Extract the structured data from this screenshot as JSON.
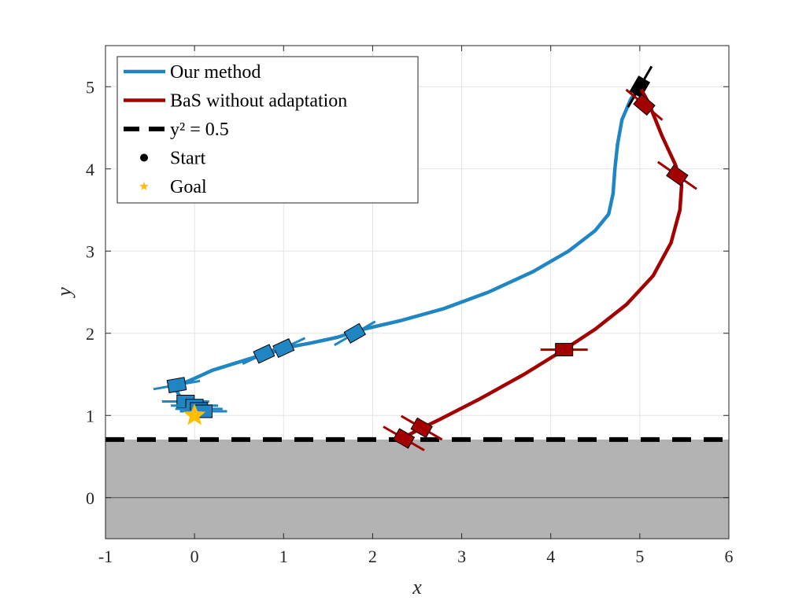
{
  "chart_data": {
    "type": "line",
    "xlabel": "x",
    "ylabel": "y",
    "xlim": [
      -1,
      6
    ],
    "ylim": [
      -0.5,
      5.5
    ],
    "xticks": [
      -1,
      0,
      1,
      2,
      3,
      4,
      5,
      6
    ],
    "yticks": [
      0,
      1,
      2,
      3,
      4,
      5
    ],
    "grid": true,
    "legend_position": "top-left",
    "unsafe_region": {
      "y_max": 0.707,
      "fill": "#b3b3b3"
    },
    "colors": {
      "our_method": "#1f86c3",
      "bas": "#a30000",
      "boundary": "#000000",
      "goal": "#ffbf00"
    },
    "legend": [
      {
        "label": "Our method",
        "kind": "line",
        "color": "#1f86c3"
      },
      {
        "label": "BaS without adaptation",
        "kind": "line",
        "color": "#a30000"
      },
      {
        "label": "y² = 0.5",
        "kind": "dashed",
        "color": "#000000"
      },
      {
        "label": "Start",
        "kind": "dot",
        "color": "#000000"
      },
      {
        "label": "Goal",
        "kind": "star",
        "color": "#ffbf00"
      }
    ],
    "series": [
      {
        "name": "Our method",
        "color": "#1f86c3",
        "x": [
          5.0,
          4.9,
          4.8,
          4.75,
          4.72,
          4.7,
          4.65,
          4.5,
          4.2,
          3.8,
          3.3,
          2.8,
          2.3,
          1.9,
          1.6,
          1.3,
          1.0,
          0.8,
          0.5,
          0.2,
          0.0,
          -0.15,
          -0.2,
          -0.15,
          -0.05,
          0.05,
          0.1
        ],
        "y": [
          5.0,
          4.85,
          4.6,
          4.3,
          4.0,
          3.7,
          3.45,
          3.25,
          3.0,
          2.75,
          2.5,
          2.3,
          2.15,
          2.05,
          1.95,
          1.88,
          1.82,
          1.75,
          1.65,
          1.55,
          1.45,
          1.38,
          1.3,
          1.2,
          1.12,
          1.08,
          1.05
        ],
        "markers": [
          {
            "x": 5.0,
            "y": 5.0,
            "angle": 60,
            "color": "#000000"
          },
          {
            "x": 1.8,
            "y": 2.0,
            "angle": 30
          },
          {
            "x": 1.0,
            "y": 1.82,
            "angle": 25
          },
          {
            "x": 0.78,
            "y": 1.75,
            "angle": 25
          },
          {
            "x": -0.2,
            "y": 1.37,
            "angle": 10
          },
          {
            "x": -0.1,
            "y": 1.17,
            "angle": 0
          },
          {
            "x": 0.0,
            "y": 1.12,
            "angle": 0
          },
          {
            "x": 0.05,
            "y": 1.08,
            "angle": 0
          },
          {
            "x": 0.1,
            "y": 1.05,
            "angle": 0
          }
        ]
      },
      {
        "name": "BaS without adaptation",
        "color": "#a30000",
        "x": [
          5.0,
          5.1,
          5.25,
          5.4,
          5.47,
          5.45,
          5.35,
          5.15,
          4.85,
          4.5,
          4.15,
          3.7,
          3.2,
          2.75,
          2.5,
          2.3
        ],
        "y": [
          5.0,
          4.8,
          4.4,
          4.05,
          3.8,
          3.5,
          3.1,
          2.7,
          2.35,
          2.05,
          1.8,
          1.5,
          1.2,
          0.95,
          0.82,
          0.7
        ],
        "markers": [
          {
            "x": 5.05,
            "y": 4.78,
            "angle": -40
          },
          {
            "x": 5.42,
            "y": 3.92,
            "angle": -35
          },
          {
            "x": 4.15,
            "y": 1.8,
            "angle": 0
          },
          {
            "x": 2.55,
            "y": 0.85,
            "angle": -30
          },
          {
            "x": 2.35,
            "y": 0.72,
            "angle": -30
          }
        ]
      }
    ],
    "start": {
      "x": 5.0,
      "y": 5.0
    },
    "goal": {
      "x": 0.0,
      "y": 1.0
    }
  }
}
